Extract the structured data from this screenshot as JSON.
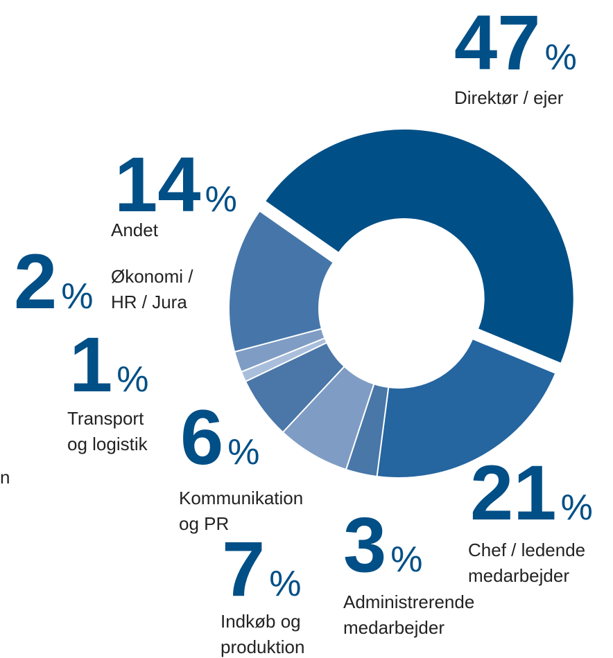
{
  "chart_data": {
    "type": "donut",
    "categories": [
      [
        "Direktør / ejer"
      ],
      [
        "Chef / ledende",
        "medarbejder"
      ],
      [
        "Administrerende",
        "medarbejder"
      ],
      [
        "Indkøb og",
        "produktion"
      ],
      [
        "Kommunikation",
        "og PR"
      ],
      [
        "Transport",
        "og logistik"
      ],
      [
        "Økonomi /",
        "HR / Jura"
      ],
      [
        "Andet"
      ]
    ],
    "values": [
      47,
      21,
      3,
      7,
      6,
      1,
      2,
      14
    ],
    "colors": [
      "#004f86",
      "#2565a0",
      "#4877a8",
      "#7f9cc4",
      "#4a76a8",
      "#a9bedb",
      "#7f9cc4",
      "#4676a9"
    ],
    "unit": "%",
    "clipped_text": "n"
  }
}
